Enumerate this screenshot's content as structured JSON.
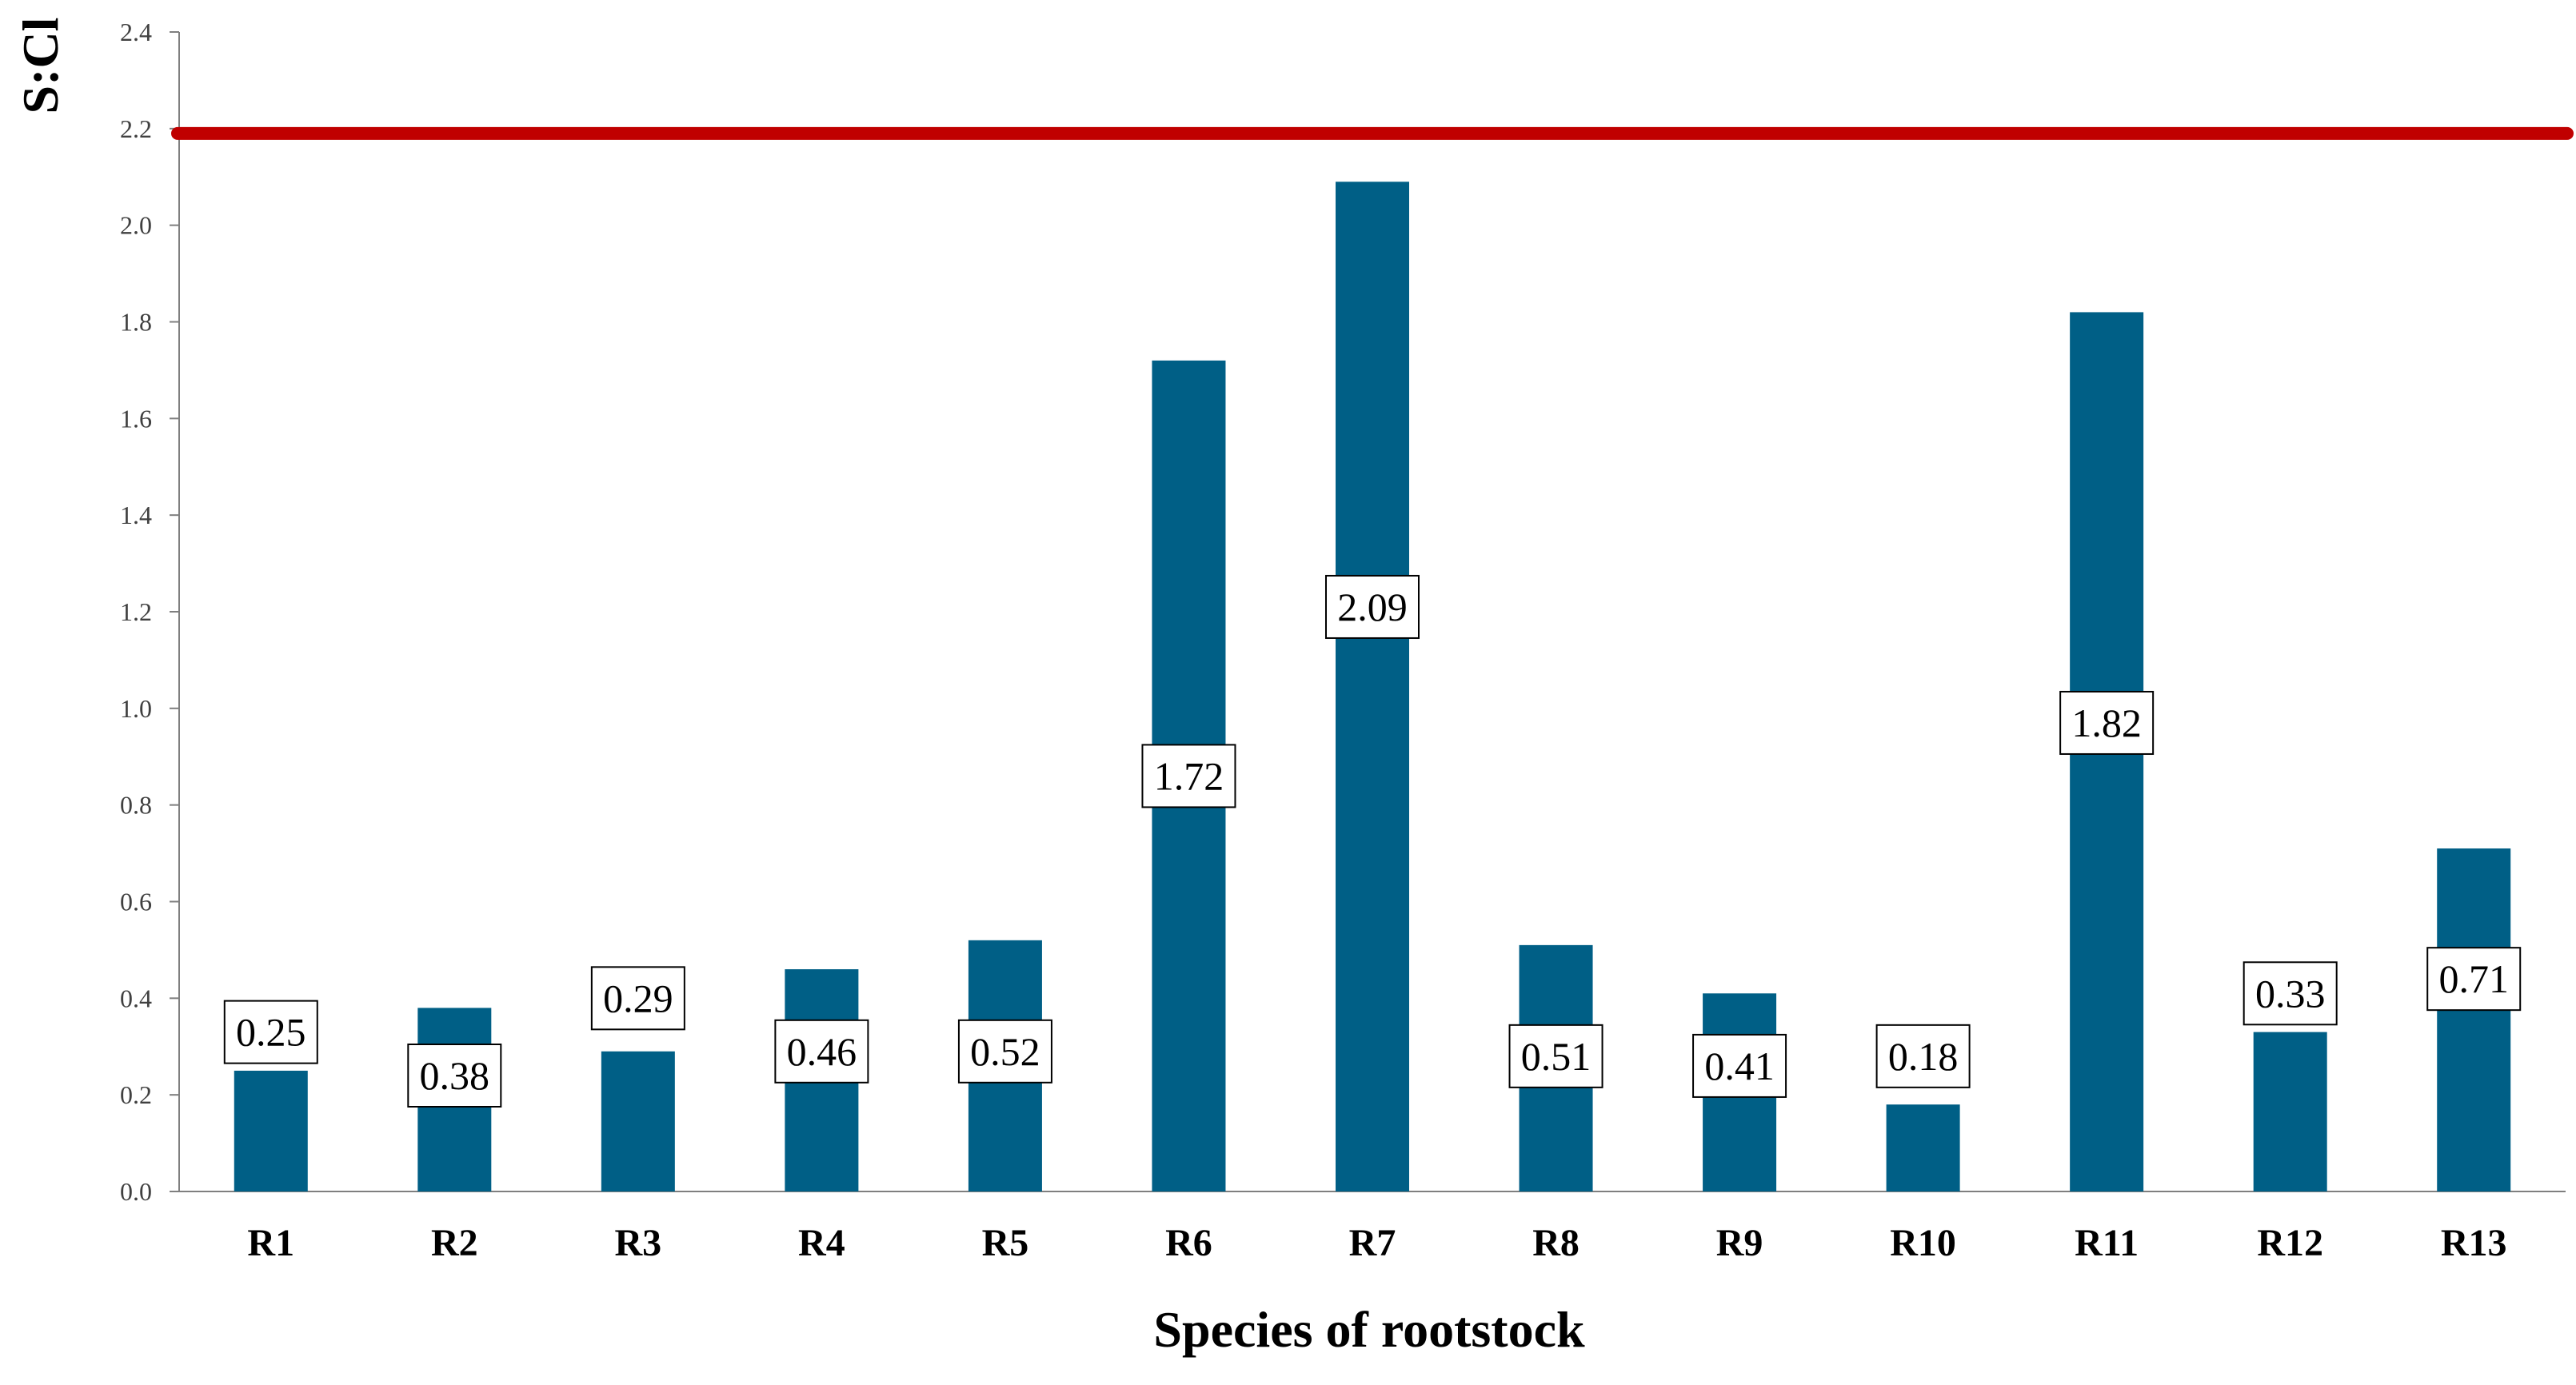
{
  "chart_data": {
    "type": "bar",
    "title": "",
    "xlabel": "Species of rootstock",
    "ylabel": "S:Cl",
    "categories": [
      "R1",
      "R2",
      "R3",
      "R4",
      "R5",
      "R6",
      "R7",
      "R8",
      "R9",
      "R10",
      "R11",
      "R12",
      "R13"
    ],
    "values": [
      0.25,
      0.38,
      0.29,
      0.46,
      0.52,
      1.72,
      2.09,
      0.51,
      0.41,
      0.18,
      1.82,
      0.33,
      0.71
    ],
    "data_labels": [
      "0.25",
      "0.38",
      "0.29",
      "0.46",
      "0.52",
      "1.72",
      "2.09",
      "0.51",
      "0.41",
      "0.18",
      "1.82",
      "0.33",
      "0.71"
    ],
    "label_values": [
      0.33,
      0.24,
      0.4,
      0.29,
      0.29,
      0.86,
      1.21,
      0.28,
      0.26,
      0.28,
      0.97,
      0.41,
      0.44
    ],
    "ylim": [
      0,
      2.4
    ],
    "yticks": [
      "0.0",
      "0.2",
      "0.4",
      "0.6",
      "0.8",
      "1.0",
      "1.2",
      "1.4",
      "1.6",
      "1.8",
      "2.0",
      "2.2",
      "2.4"
    ],
    "threshold": 2.19,
    "grid": false,
    "colors": {
      "bar": "#005f86",
      "threshold": "#c00000",
      "axis": "#7f7f7f"
    }
  }
}
